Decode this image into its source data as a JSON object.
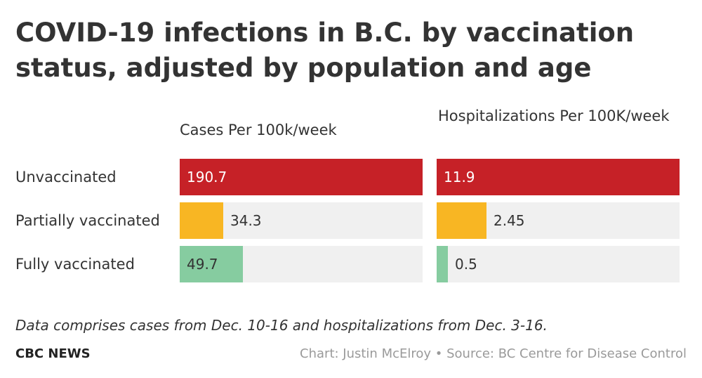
{
  "title": "COVID-19 infections in B.C. by vaccination status, adjusted by population and age",
  "note": "Data comprises cases from Dec. 10-16 and hospitalizations from Dec. 3-16.",
  "brand": "CBC NEWS",
  "credit": "Chart: Justin McElroy • Source: BC Centre for Disease Control",
  "colors": {
    "Unvaccinated": "#c62127",
    "Partially vaccinated": "#f8b623",
    "Fully vaccinated": "#86cca0",
    "track": "#f0f0f0"
  },
  "chart_data": {
    "type": "bar",
    "orientation": "horizontal",
    "categories": [
      "Unvaccinated",
      "Partially vaccinated",
      "Fully vaccinated"
    ],
    "series": [
      {
        "name": "Cases Per 100k/week",
        "values": [
          190.7,
          34.3,
          49.7
        ],
        "labels": [
          "190.7",
          "34.3",
          "49.7"
        ],
        "max": 190.7
      },
      {
        "name": "Hospitalizations Per 100K/week",
        "values": [
          11.9,
          2.45,
          0.5
        ],
        "labels": [
          "11.9",
          "2.45",
          "0.5"
        ],
        "max": 11.9
      }
    ],
    "grid": false,
    "legend": "none"
  }
}
